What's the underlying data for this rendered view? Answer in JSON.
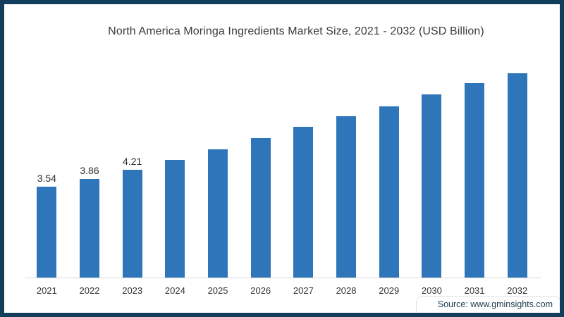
{
  "frame": {
    "border_color": "#123E5C",
    "background": "#ffffff"
  },
  "title": "North America Moringa Ingredients Market Size, 2021 - 2032 (USD Billion)",
  "source": "Source: www.gminsights.com",
  "chart_data": {
    "type": "bar",
    "categories": [
      "2021",
      "2022",
      "2023",
      "2024",
      "2025",
      "2026",
      "2027",
      "2028",
      "2029",
      "2030",
      "2031",
      "2032"
    ],
    "values": [
      3.54,
      3.86,
      4.21,
      4.6,
      5.0,
      5.45,
      5.9,
      6.3,
      6.7,
      7.15,
      7.6,
      8.0
    ],
    "data_labels": [
      "3.54",
      "3.86",
      "4.21",
      "",
      "",
      "",
      "",
      "",
      "",
      "",
      "",
      ""
    ],
    "bar_color": "#2E76B9",
    "axis_line_color": "#D9D9D9",
    "xlabel": "",
    "ylabel": "",
    "ylim": [
      0,
      9
    ],
    "grid": false,
    "legend": false
  }
}
